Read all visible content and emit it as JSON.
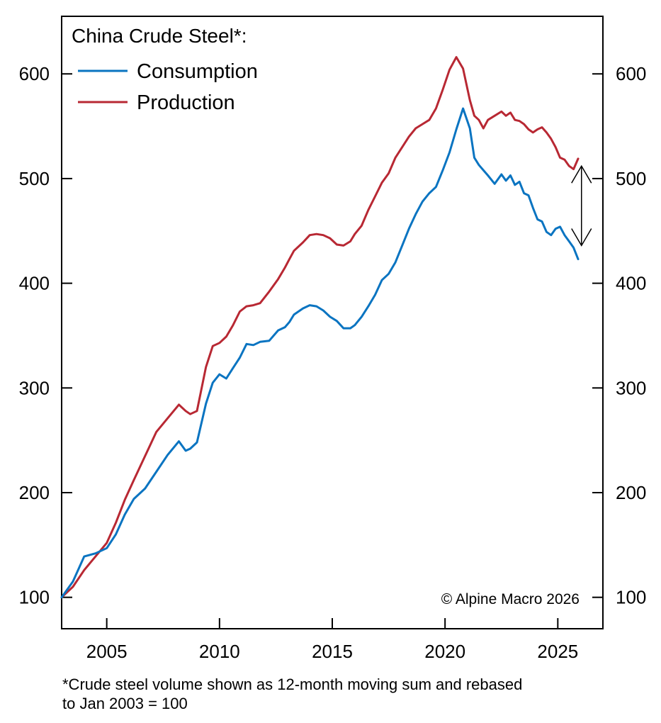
{
  "chart_data": {
    "type": "line",
    "title": "China Crude Steel*:",
    "copyright": "© Alpine Macro 2026",
    "footnote_line1": "*Crude steel volume shown as 12-month moving sum and rebased",
    "footnote_line2": "to Jan 2003 = 100",
    "xlabel": "",
    "ylabel": "",
    "xlim": [
      2003.0,
      2027.0
    ],
    "ylim": [
      70,
      655
    ],
    "x_ticks": [
      2005,
      2010,
      2015,
      2020,
      2025
    ],
    "x_tick_labels": [
      "2005",
      "2010",
      "2015",
      "2020",
      "2025"
    ],
    "y_ticks": [
      100,
      200,
      300,
      400,
      500,
      600
    ],
    "y_tick_labels": [
      "100",
      "200",
      "300",
      "400",
      "500",
      "600"
    ],
    "grid": false,
    "legend_position": "top-left",
    "annotation": "double-headed arrow at end of series marking the gap between Production and Consumption",
    "gap_arrow": {
      "x": 2026.05,
      "y_top": 512,
      "y_bottom": 436
    },
    "series": [
      {
        "name": "Consumption",
        "color": "#0a74c1",
        "x": [
          2003.0,
          2003.5,
          2004.0,
          2004.5,
          2005.0,
          2005.4,
          2005.8,
          2006.2,
          2006.7,
          2007.2,
          2007.7,
          2008.2,
          2008.5,
          2008.7,
          2009.0,
          2009.4,
          2009.7,
          2010.0,
          2010.3,
          2010.6,
          2010.9,
          2011.2,
          2011.5,
          2011.8,
          2012.2,
          2012.6,
          2012.9,
          2013.1,
          2013.3,
          2013.7,
          2014.0,
          2014.3,
          2014.6,
          2014.9,
          2015.2,
          2015.5,
          2015.8,
          2016.0,
          2016.3,
          2016.6,
          2016.9,
          2017.2,
          2017.5,
          2017.8,
          2018.1,
          2018.4,
          2018.7,
          2019.0,
          2019.3,
          2019.6,
          2019.9,
          2020.2,
          2020.5,
          2020.8,
          2021.1,
          2021.3,
          2021.5,
          2021.7,
          2021.9,
          2022.2,
          2022.5,
          2022.7,
          2022.9,
          2023.1,
          2023.3,
          2023.5,
          2023.7,
          2023.9,
          2024.1,
          2024.3,
          2024.5,
          2024.7,
          2024.9,
          2025.1,
          2025.3,
          2025.5,
          2025.7,
          2025.9
        ],
        "values": [
          100,
          115,
          139,
          142,
          147,
          160,
          179,
          194,
          204,
          220,
          236,
          249,
          240,
          242,
          248,
          285,
          305,
          313,
          309,
          319,
          329,
          342,
          341,
          344,
          345,
          355,
          358,
          363,
          370,
          376,
          379,
          378,
          374,
          368,
          364,
          357,
          357,
          360,
          368,
          378,
          389,
          403,
          409,
          420,
          436,
          452,
          466,
          478,
          486,
          492,
          508,
          525,
          547,
          567,
          548,
          520,
          513,
          508,
          503,
          495,
          504,
          498,
          503,
          494,
          497,
          486,
          484,
          472,
          461,
          459,
          449,
          446,
          452,
          454,
          446,
          440,
          434,
          423
        ]
      },
      {
        "name": "Production",
        "color": "#b82833",
        "x": [
          2003.0,
          2003.5,
          2004.0,
          2004.5,
          2005.0,
          2005.4,
          2005.8,
          2006.2,
          2006.7,
          2007.2,
          2007.7,
          2008.2,
          2008.5,
          2008.7,
          2009.0,
          2009.4,
          2009.7,
          2010.0,
          2010.3,
          2010.6,
          2010.9,
          2011.2,
          2011.5,
          2011.8,
          2012.2,
          2012.6,
          2012.9,
          2013.1,
          2013.3,
          2013.7,
          2014.0,
          2014.3,
          2014.6,
          2014.9,
          2015.2,
          2015.5,
          2015.8,
          2016.0,
          2016.3,
          2016.6,
          2016.9,
          2017.2,
          2017.5,
          2017.8,
          2018.1,
          2018.4,
          2018.7,
          2019.0,
          2019.3,
          2019.6,
          2019.9,
          2020.2,
          2020.5,
          2020.8,
          2021.1,
          2021.3,
          2021.5,
          2021.7,
          2021.9,
          2022.2,
          2022.5,
          2022.7,
          2022.9,
          2023.1,
          2023.3,
          2023.5,
          2023.7,
          2023.9,
          2024.1,
          2024.3,
          2024.5,
          2024.7,
          2024.9,
          2025.1,
          2025.3,
          2025.5,
          2025.7,
          2025.9
        ],
        "values": [
          100,
          110,
          126,
          139,
          152,
          171,
          193,
          212,
          235,
          258,
          271,
          284,
          278,
          275,
          278,
          320,
          340,
          343,
          349,
          360,
          373,
          378,
          379,
          381,
          392,
          404,
          415,
          423,
          431,
          439,
          446,
          447,
          446,
          443,
          437,
          436,
          440,
          447,
          455,
          470,
          483,
          496,
          505,
          520,
          530,
          540,
          548,
          552,
          556,
          567,
          585,
          604,
          616,
          605,
          575,
          560,
          556,
          548,
          556,
          560,
          564,
          560,
          563,
          556,
          555,
          552,
          547,
          544,
          547,
          549,
          544,
          538,
          530,
          520,
          518,
          512,
          509,
          519
        ]
      }
    ]
  }
}
